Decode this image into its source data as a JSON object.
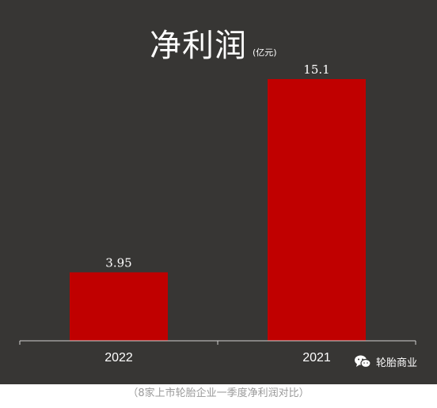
{
  "chart_data": {
    "type": "bar",
    "title": "净利润",
    "unit": "(亿元)",
    "categories": [
      "2022",
      "2021"
    ],
    "values": [
      3.95,
      15.1
    ],
    "value_labels": [
      "3.95",
      "15.1"
    ],
    "ylim": [
      0,
      15.1
    ],
    "grid": false,
    "legend": "none",
    "bar_color": "#c00000",
    "background_color": "#373634"
  },
  "watermark": {
    "icon": "wechat-icon",
    "text": "轮胎商业"
  },
  "caption": "（8家上市轮胎企业一季度净利润对比）"
}
